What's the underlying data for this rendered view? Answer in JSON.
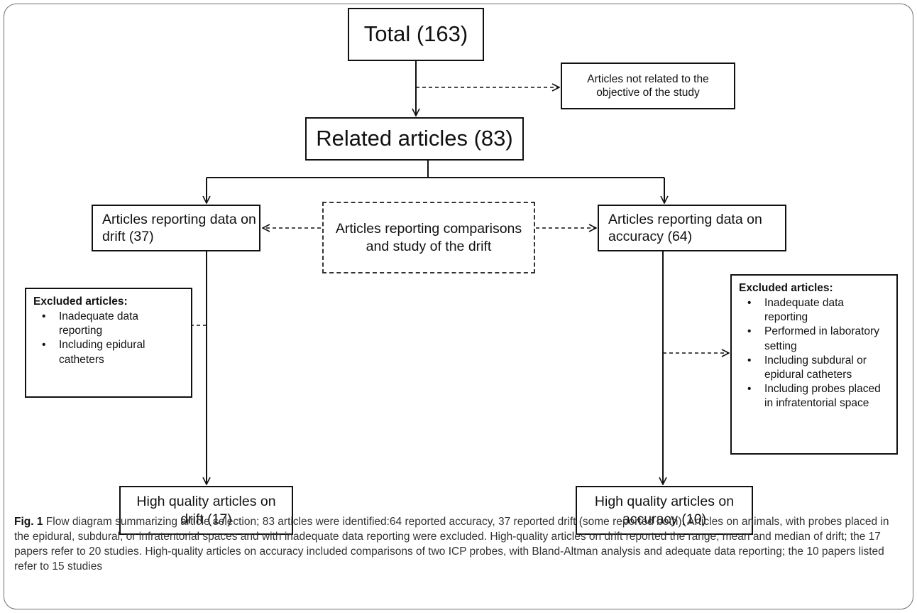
{
  "diagram": {
    "nodes": {
      "total": "Total (163)",
      "not_related": "Articles not related to the objective of the study",
      "related": "Related articles (83)",
      "drift": "Articles reporting data on drift (37)",
      "comparisons": "Articles reporting comparisons and study of the drift",
      "accuracy": "Articles reporting data on accuracy (64)",
      "high_drift": "High quality articles on drift (17)",
      "high_accuracy": "High quality articles on accuracy (10)"
    },
    "excluded_left": {
      "title": "Excluded articles:",
      "items": [
        "Inadequate data reporting",
        "Including epidural catheters"
      ]
    },
    "excluded_right": {
      "title": "Excluded articles:",
      "items": [
        "Inadequate data reporting",
        "Performed in laboratory setting",
        "Including subdural or epidural catheters",
        "Including probes placed in infratentorial space"
      ]
    },
    "colors": {
      "stroke": "#111111",
      "frame": "#6f6f6f",
      "caption_text": "#333333"
    }
  },
  "caption": {
    "label": "Fig. 1",
    "text": "Flow diagram summarizing article selection; 83 articles were identified:64 reported accuracy, 37 reported drift (some reported both). Articles on animals, with probes placed in the epidural, subdural, or infratentorial spaces and with inadequate data reporting were excluded. High-quality articles on drift reported the range, mean and median of drift; the 17 papers refer to 20 studies. High-quality articles on accuracy included comparisons of two ICP probes, with Bland-Altman analysis and adequate data reporting; the 10 papers listed refer to 15 studies"
  }
}
